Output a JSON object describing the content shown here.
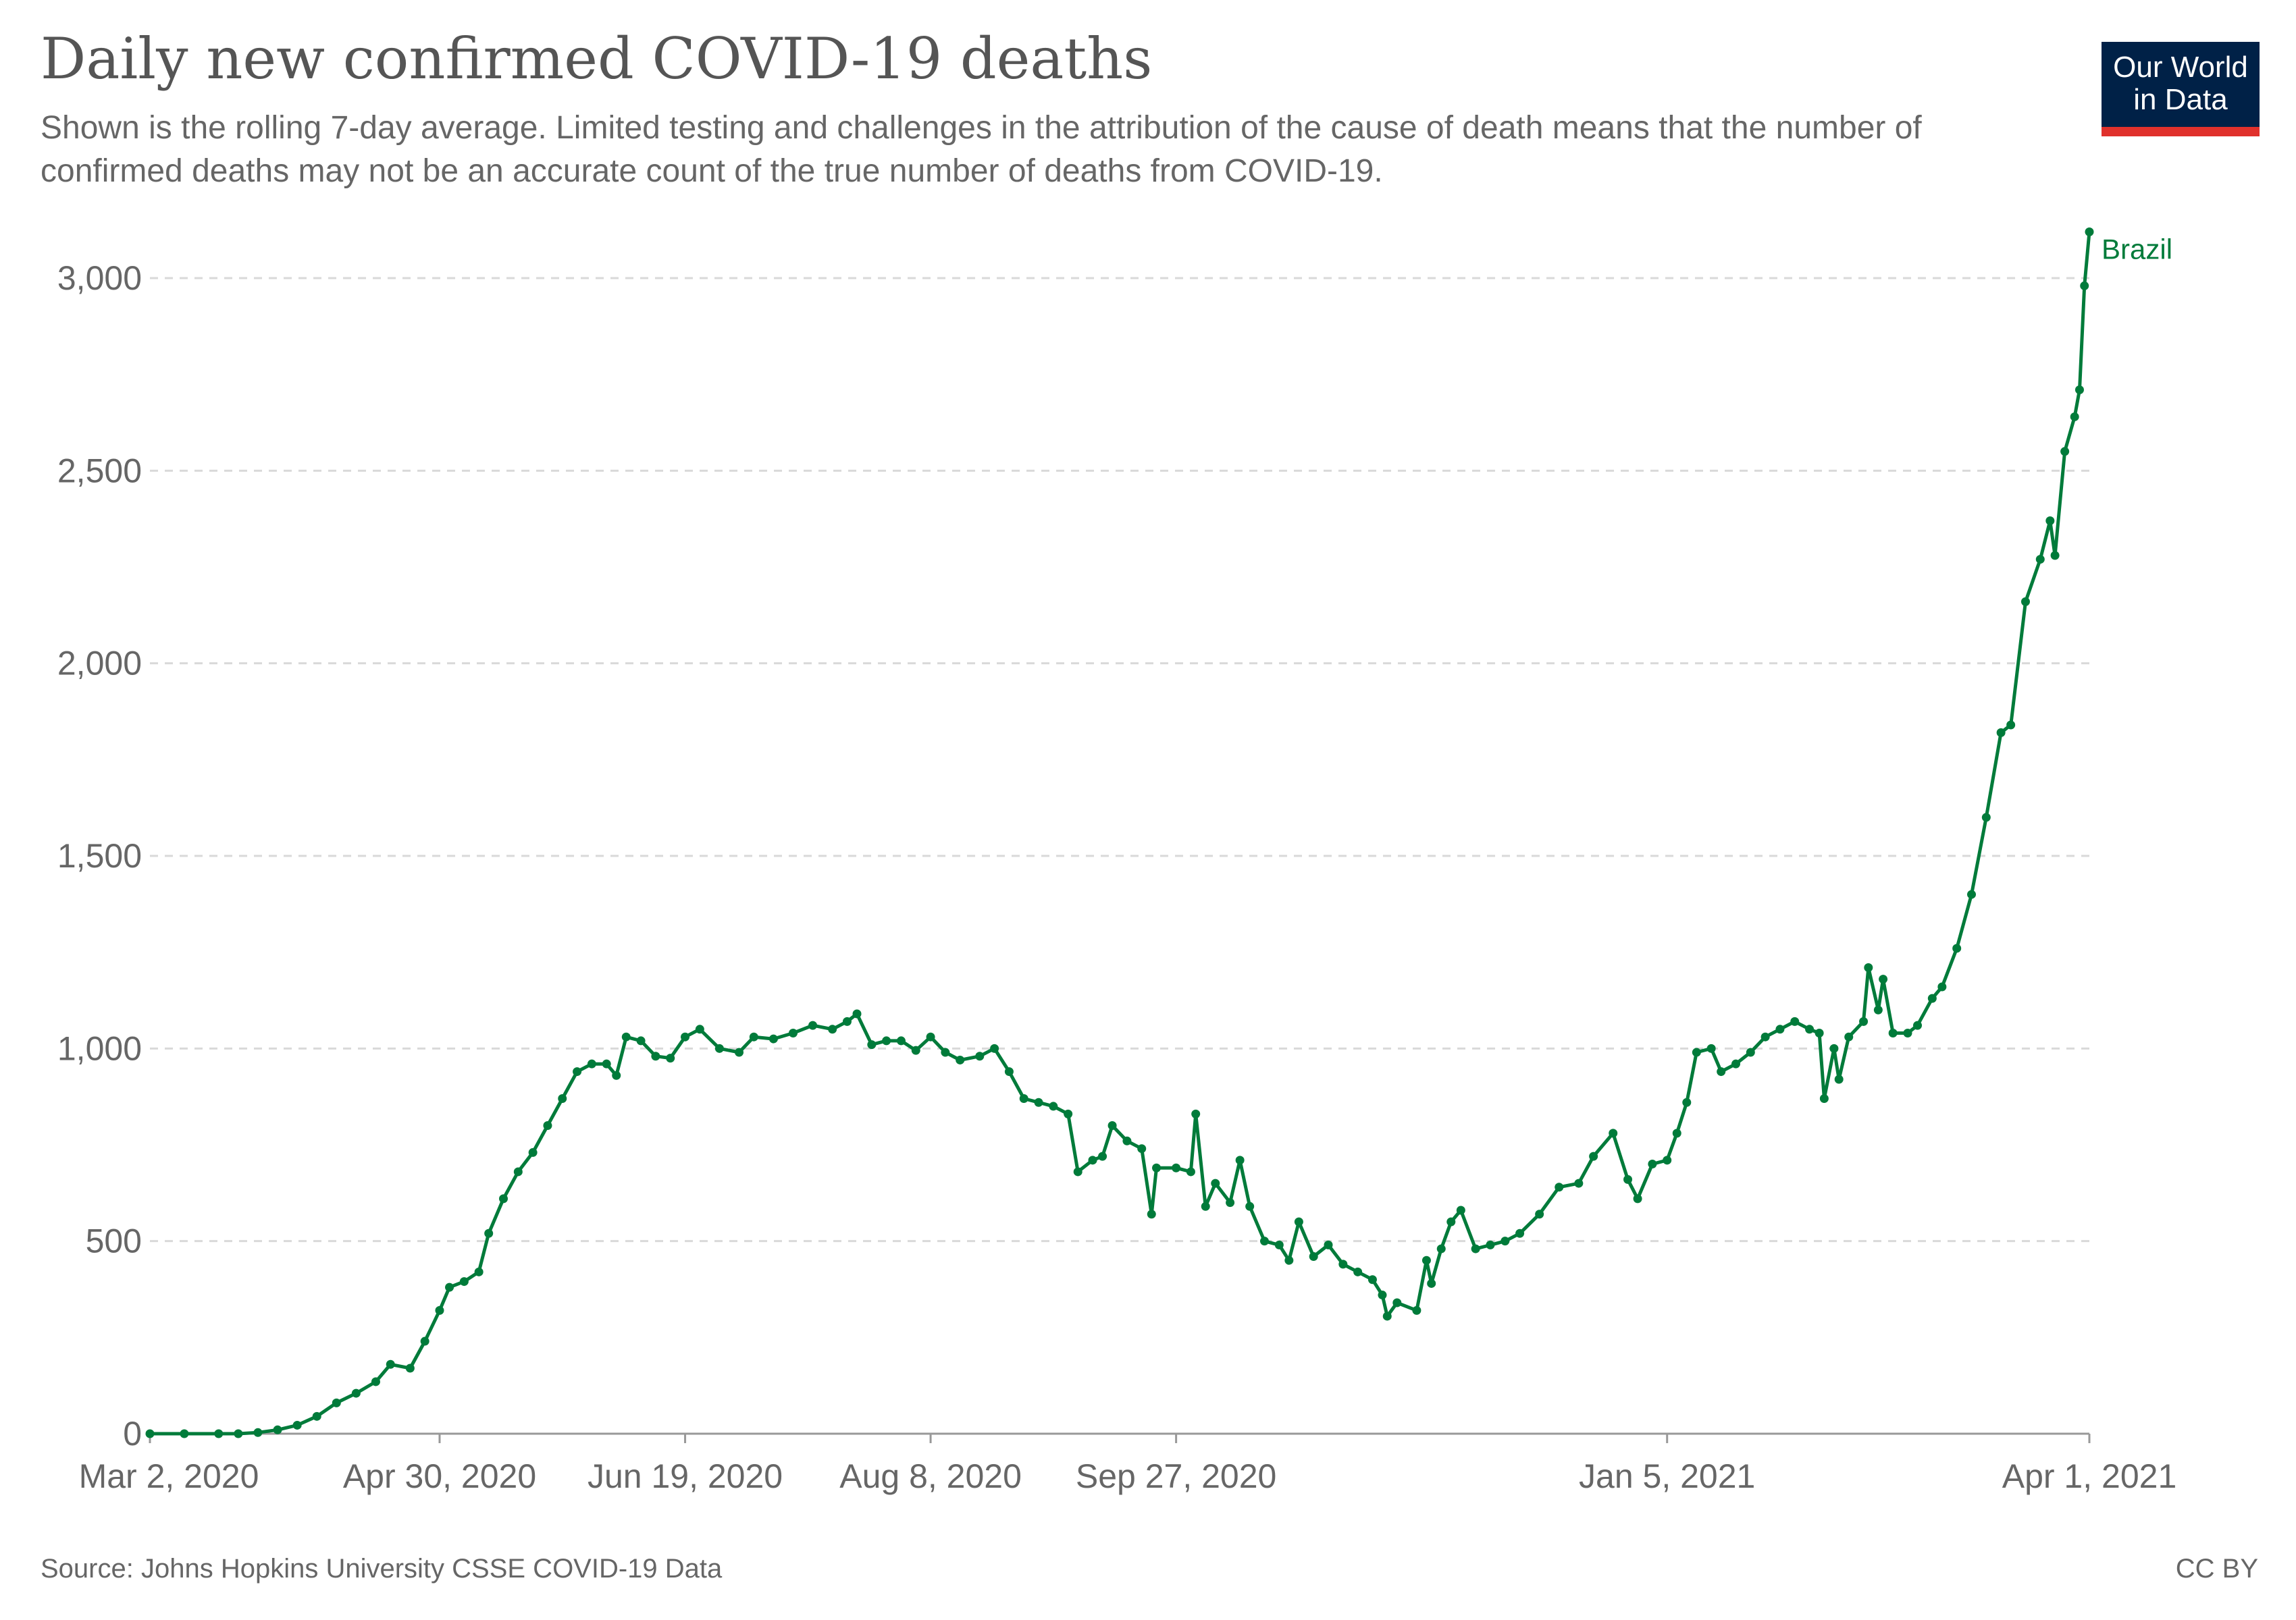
{
  "header": {
    "title": "Daily new confirmed COVID-19 deaths",
    "subtitle": "Shown is the rolling 7-day average. Limited testing and challenges in the attribution of the cause of death means that the number of confirmed deaths may not be an accurate count of the true number of deaths from COVID-19."
  },
  "logo": {
    "line1": "Our World",
    "line2": "in Data",
    "bg_color": "#002147",
    "accent_color": "#e0312c"
  },
  "footer": {
    "source": "Source: Johns Hopkins University CSSE COVID-19 Data",
    "license": "CC BY"
  },
  "chart_data": {
    "type": "line",
    "title": "Daily new confirmed COVID-19 deaths",
    "subtitle": "Shown is the rolling 7-day average. Limited testing and challenges in the attribution of the cause of death means that the number of confirmed deaths may not be an accurate count of the true number of deaths from COVID-19.",
    "xlabel": "",
    "ylabel": "",
    "x_start": "2020-03-02",
    "x_end": "2021-04-01",
    "ylim": [
      0,
      3000
    ],
    "y_ticks": [
      0,
      500,
      1000,
      1500,
      2000,
      2500,
      3000
    ],
    "y_tick_labels": [
      "0",
      "500",
      "1,000",
      "1,500",
      "2,000",
      "2,500",
      "3,000"
    ],
    "x_ticks": [
      "2020-03-02",
      "2020-04-30",
      "2020-06-19",
      "2020-08-08",
      "2020-09-27",
      "2021-01-05",
      "2021-04-01"
    ],
    "x_tick_labels": [
      "Mar 2, 2020",
      "Apr 30, 2020",
      "Jun 19, 2020",
      "Aug 8, 2020",
      "Sep 27, 2020",
      "Jan 5, 2021",
      "Apr 1, 2021"
    ],
    "grid": "horizontal dashed",
    "series": [
      {
        "name": "Brazil",
        "color": "#007b3a",
        "points": [
          [
            "2020-03-02",
            0
          ],
          [
            "2020-03-09",
            0
          ],
          [
            "2020-03-16",
            0
          ],
          [
            "2020-03-20",
            0
          ],
          [
            "2020-03-24",
            3
          ],
          [
            "2020-03-28",
            10
          ],
          [
            "2020-04-01",
            22
          ],
          [
            "2020-04-05",
            45
          ],
          [
            "2020-04-09",
            80
          ],
          [
            "2020-04-13",
            105
          ],
          [
            "2020-04-17",
            135
          ],
          [
            "2020-04-20",
            180
          ],
          [
            "2020-04-24",
            170
          ],
          [
            "2020-04-27",
            240
          ],
          [
            "2020-04-30",
            320
          ],
          [
            "2020-05-02",
            380
          ],
          [
            "2020-05-05",
            395
          ],
          [
            "2020-05-08",
            420
          ],
          [
            "2020-05-10",
            520
          ],
          [
            "2020-05-13",
            610
          ],
          [
            "2020-05-16",
            680
          ],
          [
            "2020-05-19",
            730
          ],
          [
            "2020-05-22",
            800
          ],
          [
            "2020-05-25",
            870
          ],
          [
            "2020-05-28",
            940
          ],
          [
            "2020-05-31",
            960
          ],
          [
            "2020-06-03",
            960
          ],
          [
            "2020-06-05",
            930
          ],
          [
            "2020-06-07",
            1030
          ],
          [
            "2020-06-10",
            1020
          ],
          [
            "2020-06-13",
            980
          ],
          [
            "2020-06-16",
            975
          ],
          [
            "2020-06-19",
            1030
          ],
          [
            "2020-06-22",
            1050
          ],
          [
            "2020-06-26",
            1000
          ],
          [
            "2020-06-30",
            990
          ],
          [
            "2020-07-03",
            1030
          ],
          [
            "2020-07-07",
            1025
          ],
          [
            "2020-07-11",
            1040
          ],
          [
            "2020-07-15",
            1060
          ],
          [
            "2020-07-19",
            1050
          ],
          [
            "2020-07-22",
            1070
          ],
          [
            "2020-07-24",
            1090
          ],
          [
            "2020-07-27",
            1010
          ],
          [
            "2020-07-30",
            1020
          ],
          [
            "2020-08-02",
            1020
          ],
          [
            "2020-08-05",
            995
          ],
          [
            "2020-08-08",
            1030
          ],
          [
            "2020-08-11",
            990
          ],
          [
            "2020-08-14",
            970
          ],
          [
            "2020-08-18",
            980
          ],
          [
            "2020-08-21",
            1000
          ],
          [
            "2020-08-24",
            940
          ],
          [
            "2020-08-27",
            870
          ],
          [
            "2020-08-30",
            860
          ],
          [
            "2020-09-02",
            850
          ],
          [
            "2020-09-05",
            830
          ],
          [
            "2020-09-07",
            680
          ],
          [
            "2020-09-10",
            710
          ],
          [
            "2020-09-12",
            720
          ],
          [
            "2020-09-14",
            800
          ],
          [
            "2020-09-17",
            760
          ],
          [
            "2020-09-20",
            740
          ],
          [
            "2020-09-22",
            570
          ],
          [
            "2020-09-23",
            690
          ],
          [
            "2020-09-27",
            690
          ],
          [
            "2020-09-30",
            680
          ],
          [
            "2020-10-01",
            830
          ],
          [
            "2020-10-03",
            590
          ],
          [
            "2020-10-05",
            650
          ],
          [
            "2020-10-08",
            600
          ],
          [
            "2020-10-10",
            710
          ],
          [
            "2020-10-12",
            590
          ],
          [
            "2020-10-15",
            500
          ],
          [
            "2020-10-18",
            490
          ],
          [
            "2020-10-20",
            450
          ],
          [
            "2020-10-22",
            550
          ],
          [
            "2020-10-25",
            460
          ],
          [
            "2020-10-28",
            490
          ],
          [
            "2020-10-31",
            440
          ],
          [
            "2020-11-03",
            420
          ],
          [
            "2020-11-06",
            400
          ],
          [
            "2020-11-08",
            360
          ],
          [
            "2020-11-09",
            305
          ],
          [
            "2020-11-11",
            340
          ],
          [
            "2020-11-15",
            320
          ],
          [
            "2020-11-17",
            450
          ],
          [
            "2020-11-18",
            390
          ],
          [
            "2020-11-20",
            480
          ],
          [
            "2020-11-22",
            550
          ],
          [
            "2020-11-24",
            580
          ],
          [
            "2020-11-27",
            480
          ],
          [
            "2020-11-30",
            490
          ],
          [
            "2020-12-03",
            500
          ],
          [
            "2020-12-06",
            520
          ],
          [
            "2020-12-10",
            570
          ],
          [
            "2020-12-14",
            640
          ],
          [
            "2020-12-18",
            650
          ],
          [
            "2020-12-21",
            720
          ],
          [
            "2020-12-25",
            780
          ],
          [
            "2020-12-28",
            660
          ],
          [
            "2020-12-30",
            610
          ],
          [
            "2021-01-02",
            700
          ],
          [
            "2021-01-05",
            710
          ],
          [
            "2021-01-07",
            780
          ],
          [
            "2021-01-09",
            860
          ],
          [
            "2021-01-11",
            990
          ],
          [
            "2021-01-14",
            1000
          ],
          [
            "2021-01-16",
            940
          ],
          [
            "2021-01-19",
            960
          ],
          [
            "2021-01-22",
            990
          ],
          [
            "2021-01-25",
            1030
          ],
          [
            "2021-01-28",
            1050
          ],
          [
            "2021-01-31",
            1070
          ],
          [
            "2021-02-03",
            1050
          ],
          [
            "2021-02-05",
            1040
          ],
          [
            "2021-02-06",
            870
          ],
          [
            "2021-02-08",
            1000
          ],
          [
            "2021-02-09",
            920
          ],
          [
            "2021-02-11",
            1030
          ],
          [
            "2021-02-14",
            1070
          ],
          [
            "2021-02-15",
            1210
          ],
          [
            "2021-02-17",
            1100
          ],
          [
            "2021-02-18",
            1180
          ],
          [
            "2021-02-20",
            1040
          ],
          [
            "2021-02-23",
            1040
          ],
          [
            "2021-02-25",
            1060
          ],
          [
            "2021-02-28",
            1130
          ],
          [
            "2021-03-02",
            1160
          ],
          [
            "2021-03-05",
            1260
          ],
          [
            "2021-03-08",
            1400
          ],
          [
            "2021-03-11",
            1600
          ],
          [
            "2021-03-14",
            1820
          ],
          [
            "2021-03-16",
            1840
          ],
          [
            "2021-03-19",
            2160
          ],
          [
            "2021-03-22",
            2270
          ],
          [
            "2021-03-24",
            2370
          ],
          [
            "2021-03-25",
            2280
          ],
          [
            "2021-03-27",
            2550
          ],
          [
            "2021-03-29",
            2640
          ],
          [
            "2021-03-30",
            2710
          ],
          [
            "2021-03-31",
            2980
          ],
          [
            "2021-04-01",
            3120
          ]
        ]
      }
    ]
  }
}
